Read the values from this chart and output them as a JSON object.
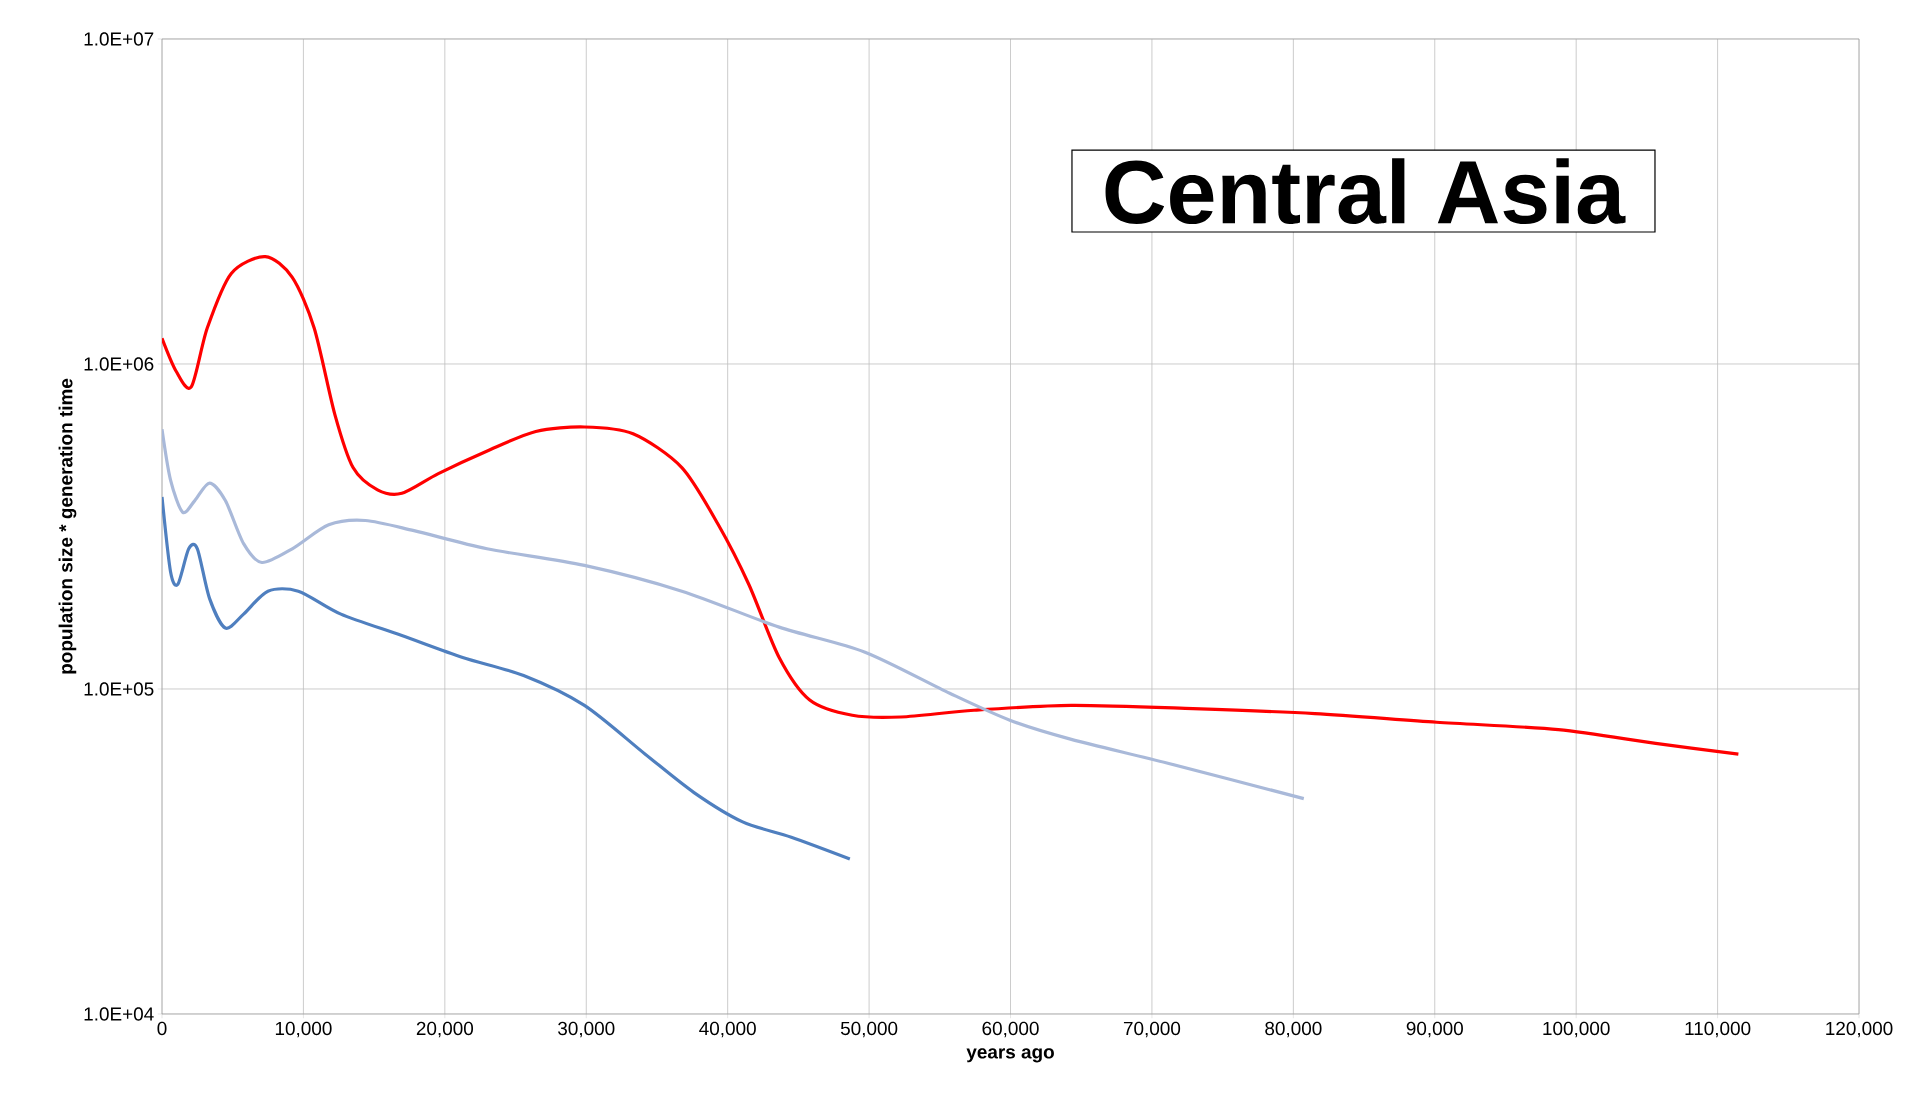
{
  "chart_data": {
    "type": "line",
    "title": "Central Asia",
    "xlabel": "years ago",
    "ylabel": "population size * generation time",
    "log": "y",
    "grid": true,
    "line_style": "solid",
    "xlim": [
      0,
      120000
    ],
    "ylim": [
      10000,
      10000000
    ],
    "xticks": [
      {
        "value": 0,
        "label": "0"
      },
      {
        "value": 10000,
        "label": "10,000"
      },
      {
        "value": 20000,
        "label": "20,000"
      },
      {
        "value": 30000,
        "label": "30,000"
      },
      {
        "value": 40000,
        "label": "40,000"
      },
      {
        "value": 50000,
        "label": "50,000"
      },
      {
        "value": 60000,
        "label": "60,000"
      },
      {
        "value": 70000,
        "label": "70,000"
      },
      {
        "value": 80000,
        "label": "80,000"
      },
      {
        "value": 90000,
        "label": "90,000"
      },
      {
        "value": 100000,
        "label": "100,000"
      },
      {
        "value": 110000,
        "label": "110,000"
      },
      {
        "value": 120000,
        "label": "120,000"
      }
    ],
    "yticks": [
      {
        "value": 10000,
        "label": "1.0E+04"
      },
      {
        "value": 100000,
        "label": "1.0E+05"
      },
      {
        "value": 1000000,
        "label": "1.0E+06"
      },
      {
        "value": 10000000,
        "label": "1.0E+07"
      }
    ],
    "series": [
      {
        "color": "#ff0000",
        "x": [
          0,
          1000,
          2070,
          3200,
          4900,
          7300,
          9200,
          10760,
          12220,
          13510,
          15240,
          16960,
          19540,
          23000,
          26430,
          29870,
          33310,
          36760,
          39340,
          41490,
          43640,
          45800,
          48810,
          52250,
          57420,
          64300,
          72910,
          81520,
          90130,
          98740,
          105620,
          111470
        ],
        "values": [
          1200000,
          950000,
          850000,
          1290000,
          1900000,
          2140000,
          1850000,
          1290000,
          700000,
          480000,
          410000,
          400000,
          460000,
          540000,
          620000,
          640000,
          610000,
          480000,
          320000,
          210000,
          125000,
          92500,
          83000,
          82000,
          86000,
          89000,
          87000,
          84000,
          79000,
          75000,
          68000,
          63000
        ]
      },
      {
        "color": "#a9b9d9",
        "x": [
          0,
          600,
          1460,
          2320,
          3360,
          4480,
          5770,
          7060,
          9210,
          11790,
          14380,
          17820,
          22980,
          29870,
          36760,
          43640,
          49670,
          55700,
          60000,
          64300,
          71190,
          80740
        ],
        "values": [
          630000,
          440000,
          350000,
          380000,
          430000,
          380000,
          280000,
          245000,
          270000,
          320000,
          330000,
          307000,
          270000,
          240000,
          200000,
          155000,
          130000,
          97000,
          80000,
          70000,
          59000,
          46000
        ]
      },
      {
        "color": "#4f7fbf",
        "x": [
          0,
          600,
          1120,
          1890,
          2500,
          3360,
          4480,
          5770,
          7490,
          9640,
          12650,
          16960,
          21260,
          25570,
          29870,
          34170,
          37620,
          41060,
          44500,
          48640
        ],
        "values": [
          390000,
          230000,
          210000,
          270000,
          270000,
          190000,
          154000,
          170000,
          200000,
          200000,
          170000,
          146000,
          125000,
          110000,
          89000,
          63000,
          48000,
          39000,
          35000,
          30000
        ]
      }
    ]
  }
}
